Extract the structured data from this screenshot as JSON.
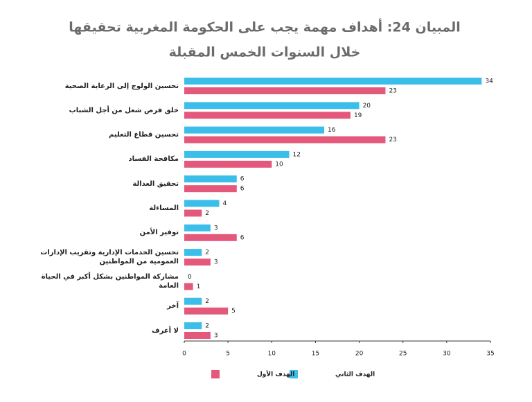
{
  "chart_data": {
    "type": "bar",
    "orientation": "horizontal",
    "title": "المبيان 24: أهداف مهمة يجب على الحكومة المغربية تحقيقها",
    "subtitle": "خلال السنوات الخمس المقبلة",
    "categories": [
      "تحسين الولوج إلى الرعاية الصحية",
      "خلق فرص شغل من أجل الشباب",
      "تحسين قطاع التعليم",
      "مكافحة الفساد",
      "تحقيق العدالة",
      "المساءلة",
      "توفير الأمن",
      "تحسين الخدمات الإدارية وتقريب الإدارات العمومية من المواطنين",
      "مشاركة المواطنين بشكل أكبر في الحياة العامة",
      "آخر",
      "لا أعرف"
    ],
    "series": [
      {
        "name": "الهدف الثاني",
        "color": "#3bbfea",
        "values": [
          34,
          20,
          16,
          12,
          6,
          4,
          3,
          2,
          0,
          2,
          2
        ]
      },
      {
        "name": "الهدف الأول",
        "color": "#e4587b",
        "values": [
          23,
          19,
          23,
          10,
          6,
          2,
          6,
          3,
          1,
          5,
          3
        ]
      }
    ],
    "xlim": [
      0,
      35
    ],
    "xticks": [
      0,
      5,
      10,
      15,
      20,
      25,
      30,
      35
    ],
    "grid": false
  }
}
